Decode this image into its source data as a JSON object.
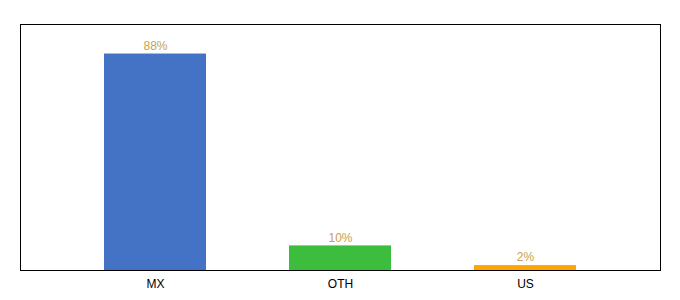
{
  "chart_data": {
    "type": "bar",
    "categories": [
      "MX",
      "OTH",
      "US"
    ],
    "values": [
      88,
      10,
      2
    ],
    "value_labels": [
      "88%",
      "10%",
      "2%"
    ],
    "colors": [
      "#4472C4",
      "#3DBD3D",
      "#FFA500"
    ],
    "ylim": [
      0,
      100
    ],
    "data_labels": true,
    "tick_labels": "x"
  }
}
